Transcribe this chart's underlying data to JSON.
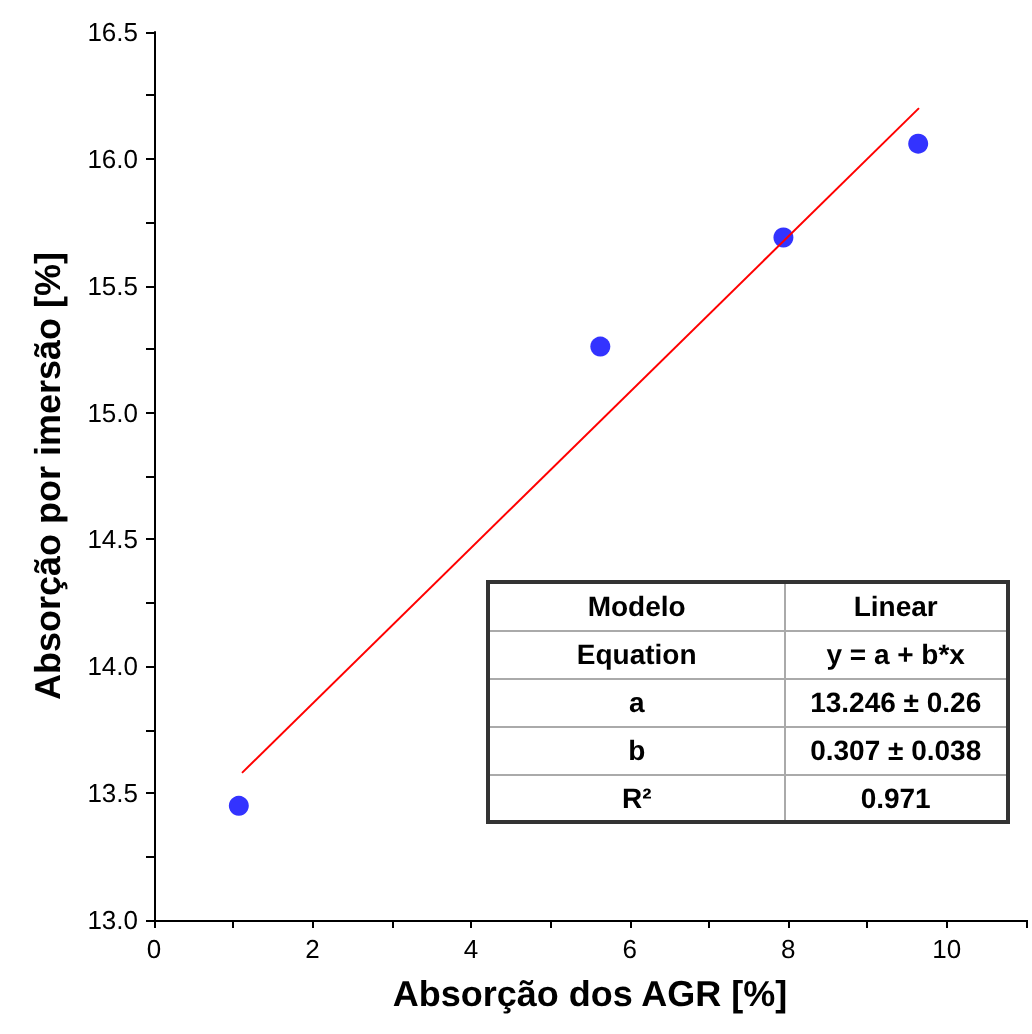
{
  "chart_data": {
    "type": "scatter",
    "xlabel": "Absorção dos AGR [%]",
    "ylabel": "Absorção por imersão [%]",
    "xlim": [
      0,
      11
    ],
    "xticks": [
      0,
      {
        "value": 1,
        "label": null
      },
      2,
      {
        "value": 3,
        "label": null
      },
      4,
      {
        "value": 5,
        "label": null
      },
      6,
      {
        "value": 7,
        "label": null
      },
      8,
      {
        "value": 9,
        "label": null
      },
      10,
      {
        "value": 11,
        "label": null
      }
    ],
    "ylim": [
      13,
      16.5
    ],
    "yticks": [
      {
        "value": 13,
        "label": "13.0"
      },
      {
        "value": 13.25,
        "label": null
      },
      {
        "value": 13.5,
        "label": "13.5"
      },
      {
        "value": 13.75,
        "label": null
      },
      {
        "value": 14,
        "label": "14.0"
      },
      {
        "value": 14.25,
        "label": null
      },
      {
        "value": 14.5,
        "label": "14.5"
      },
      {
        "value": 14.75,
        "label": null
      },
      {
        "value": 15,
        "label": "15.0"
      },
      {
        "value": 15.25,
        "label": null
      },
      {
        "value": 15.5,
        "label": "15.5"
      },
      {
        "value": 15.75,
        "label": null
      },
      {
        "value": 16,
        "label": "16.0"
      },
      {
        "value": 16.25,
        "label": null
      },
      {
        "value": 16.5,
        "label": "16.5"
      }
    ],
    "series": [
      {
        "color": "#0000ff",
        "marker": "circle",
        "x": [
          1.07,
          5.63,
          7.94,
          9.64
        ],
        "values": [
          13.45,
          15.26,
          15.69,
          16.06
        ]
      },
      {
        "type": "line",
        "color": "#ff0000",
        "marker": "none",
        "line_style": "solid",
        "x": [
          1.11,
          9.65
        ],
        "values": [
          13.58,
          16.2
        ]
      }
    ],
    "annotations": [
      "Modelo",
      "Linear",
      "Equation",
      "y = a + b*x",
      "a",
      "13.246 ± 0.26",
      "b",
      "0.307 ± 0.038",
      "R²",
      "0.971"
    ]
  }
}
